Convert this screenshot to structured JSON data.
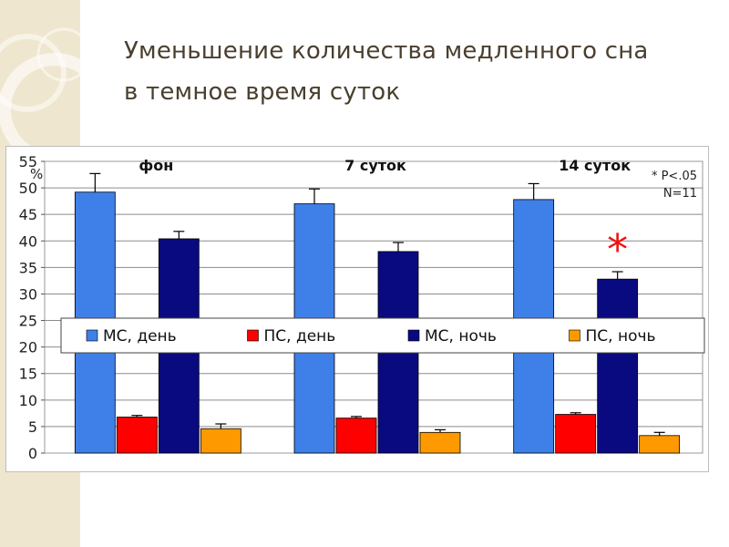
{
  "slide": {
    "title_line1": "Уменьшение количества медленного сна",
    "title_line2": "в темное время суток"
  },
  "chart_data": {
    "type": "bar",
    "categories": [
      "фон",
      "7 суток",
      "14 суток"
    ],
    "series": [
      {
        "name": "МС, день",
        "color": "#3f7fe8",
        "values": [
          49.2,
          47.0,
          47.8
        ],
        "errors": [
          3.5,
          2.8,
          3.0
        ]
      },
      {
        "name": "ПС, день",
        "color": "#ff0000",
        "values": [
          6.8,
          6.6,
          7.3
        ],
        "errors": [
          0.3,
          0.3,
          0.3
        ]
      },
      {
        "name": "МС, ночь",
        "color": "#0a0a80",
        "values": [
          40.4,
          38.0,
          32.8
        ],
        "errors": [
          1.4,
          1.7,
          1.4
        ]
      },
      {
        "name": "ПС, ночь",
        "color": "#ff9900",
        "values": [
          4.6,
          3.9,
          3.3
        ],
        "errors": [
          0.9,
          0.5,
          0.6
        ]
      }
    ],
    "ylabel": "%",
    "ylim": [
      0,
      55
    ],
    "yticks": [
      0,
      5,
      10,
      15,
      20,
      25,
      30,
      35,
      40,
      45,
      50,
      55
    ],
    "grid": true,
    "legend": "center",
    "annotation_lines": [
      "* P<.05",
      "N=11"
    ],
    "significance_marker": {
      "symbol": "*",
      "category": "14 суток",
      "series": "МС, ночь"
    }
  }
}
